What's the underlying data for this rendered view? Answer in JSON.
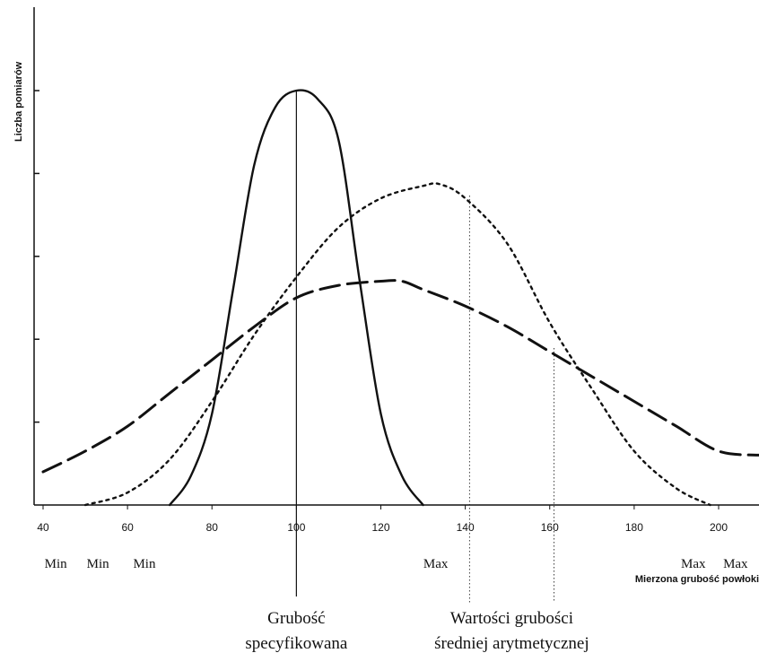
{
  "chart_data": {
    "type": "line",
    "title": "",
    "ylabel": "Liczba pomiarów",
    "xlabel": "Mierzona grubość powłoki",
    "xlim": [
      40,
      210
    ],
    "x_ticks": [
      40,
      60,
      80,
      100,
      120,
      140,
      160,
      180,
      200
    ],
    "x_tick_labels": [
      "40",
      "60",
      "80",
      "100",
      "120",
      "140",
      "160",
      "180",
      "200"
    ],
    "ylim": [
      0,
      6
    ],
    "y_ticks": [
      1,
      2,
      3,
      4,
      5
    ],
    "grid": false,
    "series": [
      {
        "style": "solid",
        "points": [
          [
            70,
            0
          ],
          [
            75,
            0.35
          ],
          [
            80,
            1.1
          ],
          [
            85,
            2.6
          ],
          [
            90,
            4.1
          ],
          [
            95,
            4.8
          ],
          [
            100,
            5.0
          ],
          [
            105,
            4.9
          ],
          [
            110,
            4.4
          ],
          [
            115,
            2.7
          ],
          [
            120,
            1.1
          ],
          [
            125,
            0.35
          ],
          [
            130,
            0
          ]
        ]
      },
      {
        "style": "dotted",
        "points": [
          [
            50,
            0
          ],
          [
            60,
            0.15
          ],
          [
            70,
            0.55
          ],
          [
            80,
            1.25
          ],
          [
            90,
            2.05
          ],
          [
            100,
            2.75
          ],
          [
            110,
            3.35
          ],
          [
            120,
            3.7
          ],
          [
            130,
            3.85
          ],
          [
            134,
            3.87
          ],
          [
            140,
            3.7
          ],
          [
            150,
            3.15
          ],
          [
            160,
            2.2
          ],
          [
            170,
            1.4
          ],
          [
            180,
            0.65
          ],
          [
            190,
            0.2
          ],
          [
            198,
            0
          ]
        ]
      },
      {
        "style": "dashed",
        "points": [
          [
            40,
            0.4
          ],
          [
            50,
            0.65
          ],
          [
            60,
            0.95
          ],
          [
            70,
            1.35
          ],
          [
            80,
            1.75
          ],
          [
            90,
            2.15
          ],
          [
            100,
            2.5
          ],
          [
            110,
            2.65
          ],
          [
            120,
            2.7
          ],
          [
            125,
            2.7
          ],
          [
            130,
            2.6
          ],
          [
            140,
            2.4
          ],
          [
            150,
            2.15
          ],
          [
            160,
            1.85
          ],
          [
            170,
            1.55
          ],
          [
            180,
            1.25
          ],
          [
            190,
            0.95
          ],
          [
            200,
            0.65
          ],
          [
            210,
            0.6
          ]
        ]
      }
    ],
    "markers": {
      "min_labels": [
        {
          "text": "Min",
          "x": 43
        },
        {
          "text": "Min",
          "x": 53
        },
        {
          "text": "Min",
          "x": 64
        }
      ],
      "max_labels": [
        {
          "text": "Max",
          "x": 133
        },
        {
          "text": "Max",
          "x": 194
        },
        {
          "text": "Max",
          "x": 204
        }
      ]
    },
    "reference_lines": [
      {
        "x": 100,
        "style": "solid"
      },
      {
        "x": 141,
        "style": "dotted"
      },
      {
        "x": 161,
        "style": "dotted"
      }
    ],
    "annotations": [
      {
        "lines": [
          "Grubość",
          "specyfikowana"
        ],
        "x": 100
      },
      {
        "lines": [
          "Wartości  grubości",
          "średniej  arytmetycznej"
        ],
        "x": 151
      }
    ]
  }
}
